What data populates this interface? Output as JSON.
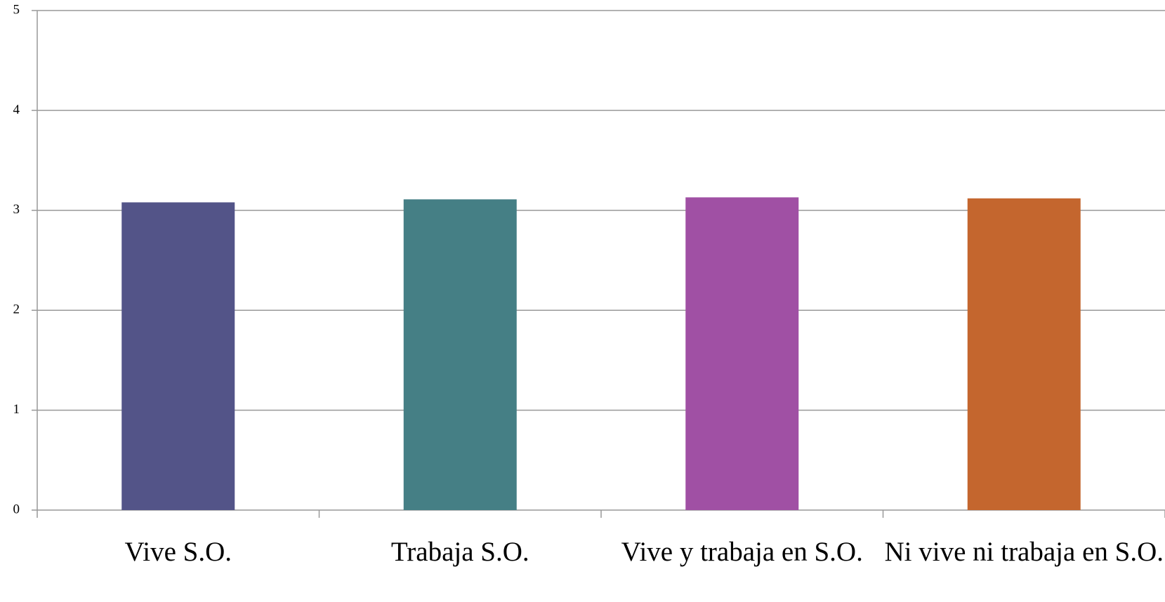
{
  "chart_data": {
    "type": "bar",
    "categories": [
      "Vive S.O.",
      "Trabaja S.O.",
      "Vive y trabaja en S.O.",
      "Ni vive ni trabaja en S.O."
    ],
    "values": [
      3.08,
      3.11,
      3.13,
      3.12
    ],
    "colors": [
      "#535488",
      "#457f85",
      "#a050a4",
      "#c4662e"
    ],
    "ylim": [
      0,
      5
    ],
    "yticks": [
      0,
      1,
      2,
      3,
      4,
      5
    ],
    "grid": true
  }
}
